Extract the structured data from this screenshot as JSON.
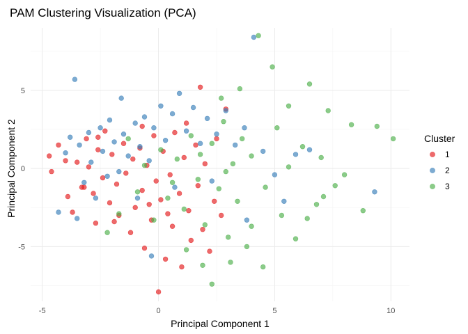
{
  "chart_data": {
    "type": "scatter",
    "title": "PAM Clustering Visualization (PCA)",
    "xlabel": "Principal Component 1",
    "ylabel": "Principal Component 2",
    "xlim": [
      -5.5,
      10.8
    ],
    "ylim": [
      -8.5,
      9.0
    ],
    "x_ticks": [
      -5,
      0,
      5,
      10
    ],
    "y_ticks": [
      -5,
      0,
      5
    ],
    "grid": true,
    "legend": {
      "title": "Cluster",
      "position": "right",
      "entries": [
        "1",
        "2",
        "3"
      ]
    },
    "point_opacity": 0.65,
    "series": [
      {
        "name": "1",
        "color": "#E41A1C",
        "points": [
          [
            -4.7,
            0.8
          ],
          [
            -4.6,
            -0.2
          ],
          [
            -4.3,
            1.5
          ],
          [
            -4.0,
            0.5
          ],
          [
            -3.9,
            -1.8
          ],
          [
            -3.7,
            -2.8
          ],
          [
            -3.5,
            0.4
          ],
          [
            -3.3,
            -1.2
          ],
          [
            -3.1,
            1.9
          ],
          [
            -3.0,
            0.1
          ],
          [
            -2.8,
            -1.6
          ],
          [
            -2.7,
            -3.5
          ],
          [
            -2.6,
            1.2
          ],
          [
            -2.4,
            -0.6
          ],
          [
            -2.3,
            2.4
          ],
          [
            -2.1,
            -2.2
          ],
          [
            -2.0,
            0.9
          ],
          [
            -1.8,
            -1.0
          ],
          [
            -1.7,
            -3.0
          ],
          [
            -1.5,
            1.6
          ],
          [
            -1.4,
            -0.3
          ],
          [
            -1.2,
            -4.1
          ],
          [
            -1.1,
            0.6
          ],
          [
            -1.0,
            -2.5
          ],
          [
            -0.8,
            1.3
          ],
          [
            -0.7,
            -1.4
          ],
          [
            -0.6,
            -5.1
          ],
          [
            -0.5,
            0.2
          ],
          [
            -0.3,
            -3.3
          ],
          [
            -0.2,
            2.1
          ],
          [
            -0.1,
            -0.8
          ],
          [
            0.0,
            -7.9
          ],
          [
            0.1,
            -2.0
          ],
          [
            0.2,
            1.1
          ],
          [
            0.3,
            -5.8
          ],
          [
            0.5,
            -0.4
          ],
          [
            0.6,
            -3.7
          ],
          [
            0.7,
            2.3
          ],
          [
            0.9,
            -1.6
          ],
          [
            1.0,
            -6.3
          ],
          [
            1.1,
            0.7
          ],
          [
            1.3,
            -2.7
          ],
          [
            1.4,
            -4.6
          ],
          [
            1.6,
            1.5
          ],
          [
            1.7,
            -1.1
          ],
          [
            1.9,
            -3.9
          ],
          [
            2.0,
            0.3
          ],
          [
            2.2,
            -5.3
          ],
          [
            2.4,
            -2.1
          ],
          [
            2.5,
            1.9
          ],
          [
            2.7,
            -3.0
          ],
          [
            2.9,
            3.8
          ],
          [
            1.8,
            5.2
          ],
          [
            -0.7,
            2.7
          ],
          [
            -2.6,
            2.0
          ],
          [
            -3.2,
            -1.2
          ],
          [
            -1.9,
            -3.4
          ],
          [
            0.4,
            -2.9
          ],
          [
            -0.4,
            -2.3
          ],
          [
            1.2,
            2.9
          ]
        ]
      },
      {
        "name": "2",
        "color": "#377EB8",
        "points": [
          [
            -4.3,
            -2.8
          ],
          [
            -4.0,
            1.0
          ],
          [
            -3.8,
            2.0
          ],
          [
            -3.6,
            5.7
          ],
          [
            -3.5,
            -3.2
          ],
          [
            -3.4,
            1.5
          ],
          [
            -3.2,
            -0.9
          ],
          [
            -3.0,
            2.3
          ],
          [
            -2.9,
            0.4
          ],
          [
            -2.7,
            -1.9
          ],
          [
            -2.5,
            2.6
          ],
          [
            -2.4,
            1.1
          ],
          [
            -2.2,
            -0.5
          ],
          [
            -2.1,
            3.1
          ],
          [
            -1.9,
            1.7
          ],
          [
            -1.6,
            4.5
          ],
          [
            -1.5,
            2.2
          ],
          [
            -1.3,
            0.8
          ],
          [
            -1.0,
            2.9
          ],
          [
            -0.8,
            1.4
          ],
          [
            -0.6,
            3.3
          ],
          [
            -0.4,
            0.5
          ],
          [
            -0.2,
            2.6
          ],
          [
            0.1,
            4.0
          ],
          [
            0.3,
            1.8
          ],
          [
            0.6,
            3.5
          ],
          [
            0.9,
            4.8
          ],
          [
            1.2,
            2.4
          ],
          [
            1.5,
            3.9
          ],
          [
            1.8,
            1.6
          ],
          [
            2.1,
            3.2
          ],
          [
            2.5,
            2.2
          ],
          [
            2.9,
            3.7
          ],
          [
            3.3,
            1.5
          ],
          [
            3.7,
            2.6
          ],
          [
            4.1,
            8.4
          ],
          [
            4.5,
            1.1
          ],
          [
            5.0,
            -0.4
          ],
          [
            5.4,
            -2.1
          ],
          [
            5.9,
            0.9
          ],
          [
            6.5,
            1.2
          ],
          [
            9.3,
            -1.5
          ],
          [
            0.7,
            -1.2
          ],
          [
            -0.9,
            -1.9
          ],
          [
            -1.7,
            -0.2
          ],
          [
            2.3,
            -0.8
          ],
          [
            3.8,
            -3.3
          ],
          [
            -0.3,
            -5.6
          ]
        ]
      },
      {
        "name": "3",
        "color": "#4DAF4A",
        "points": [
          [
            -2.2,
            -4.1
          ],
          [
            -1.7,
            -2.9
          ],
          [
            -1.3,
            1.9
          ],
          [
            -0.9,
            -1.5
          ],
          [
            -0.6,
            0.2
          ],
          [
            -0.2,
            -3.3
          ],
          [
            0.1,
            1.2
          ],
          [
            0.4,
            -1.9
          ],
          [
            0.8,
            0.6
          ],
          [
            1.1,
            -2.6
          ],
          [
            1.4,
            2.1
          ],
          [
            1.7,
            -0.7
          ],
          [
            2.0,
            -3.6
          ],
          [
            2.3,
            1.6
          ],
          [
            2.6,
            -1.3
          ],
          [
            2.8,
            3.0
          ],
          [
            3.0,
            -4.4
          ],
          [
            3.2,
            0.3
          ],
          [
            3.4,
            -2.1
          ],
          [
            3.6,
            1.9
          ],
          [
            3.8,
            -5.0
          ],
          [
            4.0,
            0.8
          ],
          [
            4.3,
            8.5
          ],
          [
            4.6,
            -1.2
          ],
          [
            4.9,
            6.5
          ],
          [
            5.1,
            2.6
          ],
          [
            5.3,
            -3.0
          ],
          [
            5.6,
            0.1
          ],
          [
            5.9,
            -4.5
          ],
          [
            6.2,
            1.4
          ],
          [
            6.5,
            5.4
          ],
          [
            6.8,
            -2.3
          ],
          [
            7.0,
            0.7
          ],
          [
            7.3,
            3.7
          ],
          [
            7.6,
            -1.1
          ],
          [
            8.0,
            -0.4
          ],
          [
            8.3,
            2.8
          ],
          [
            8.8,
            -2.7
          ],
          [
            9.4,
            2.7
          ],
          [
            10.1,
            1.9
          ],
          [
            1.9,
            -6.2
          ],
          [
            2.3,
            -7.4
          ],
          [
            3.1,
            -6.0
          ],
          [
            1.2,
            -5.2
          ],
          [
            4.5,
            -6.3
          ],
          [
            3.5,
            5.1
          ],
          [
            5.6,
            4.0
          ],
          [
            2.7,
            4.5
          ],
          [
            4.0,
            -3.7
          ],
          [
            6.4,
            -3.2
          ],
          [
            7.1,
            -1.8
          ],
          [
            0.6,
            -0.9
          ],
          [
            1.8,
            0.9
          ],
          [
            2.9,
            -0.2
          ]
        ]
      }
    ]
  }
}
